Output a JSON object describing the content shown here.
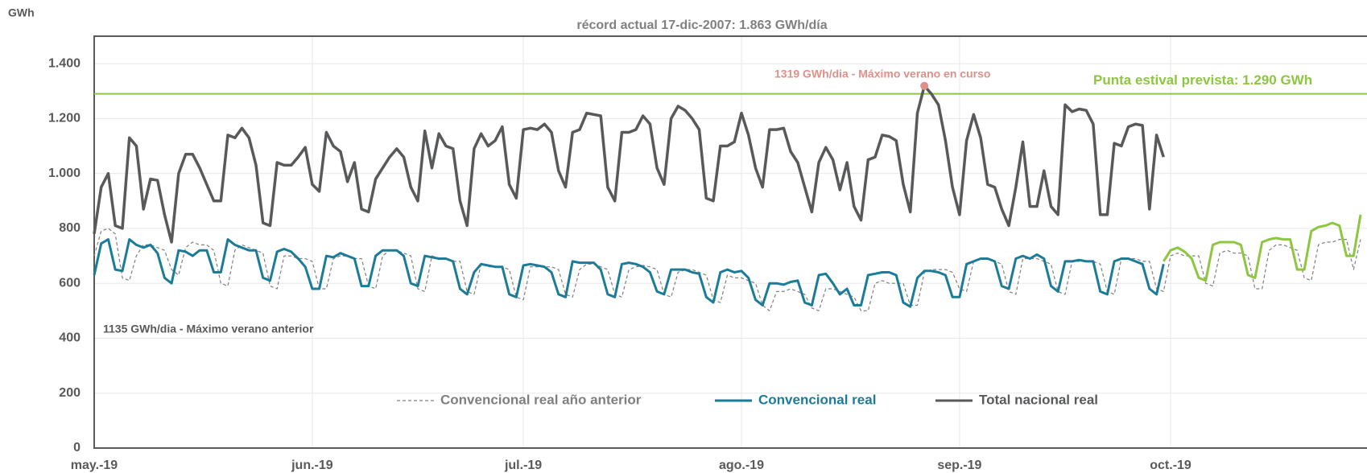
{
  "chart_data": {
    "type": "line",
    "title": "récord actual 17-dic-2007:  1.863 GWh/día",
    "y_axis_label": "GWh",
    "categories": [
      "may.-19",
      null,
      null,
      null,
      null,
      null,
      null,
      null,
      null,
      null,
      null,
      null,
      null,
      null,
      null,
      null,
      null,
      null,
      null,
      null,
      null,
      null,
      null,
      null,
      null,
      null,
      null,
      null,
      null,
      null,
      null,
      "jun.-19",
      null,
      null,
      null,
      null,
      null,
      null,
      null,
      null,
      null,
      null,
      null,
      null,
      null,
      null,
      null,
      null,
      null,
      null,
      null,
      null,
      null,
      null,
      null,
      null,
      null,
      null,
      null,
      null,
      null,
      "jul.-19",
      null,
      null,
      null,
      null,
      null,
      null,
      null,
      null,
      null,
      null,
      null,
      null,
      null,
      null,
      null,
      null,
      null,
      null,
      null,
      null,
      null,
      null,
      null,
      null,
      null,
      null,
      null,
      null,
      null,
      null,
      "ago.-19",
      null,
      null,
      null,
      null,
      null,
      null,
      null,
      null,
      null,
      null,
      null,
      null,
      null,
      null,
      null,
      null,
      null,
      null,
      null,
      null,
      null,
      null,
      null,
      null,
      null,
      null,
      null,
      null,
      null,
      null,
      "sep.-19",
      null,
      null,
      null,
      null,
      null,
      null,
      null,
      null,
      null,
      null,
      null,
      null,
      null,
      null,
      null,
      null,
      null,
      null,
      null,
      null,
      null,
      null,
      null,
      null,
      null,
      null,
      null,
      null,
      null,
      "oct.-19",
      null,
      null,
      null,
      null,
      null,
      null,
      null,
      null,
      null,
      null,
      null,
      null,
      null,
      null,
      null,
      null,
      null,
      null,
      null,
      null,
      null,
      null,
      null,
      null,
      null,
      null,
      null
    ],
    "series": [
      {
        "name": "Convencional real año anterior",
        "color": "#7f7f7f",
        "dash": true,
        "width": 1.2,
        "values": [
          700,
          790,
          800,
          780,
          620,
          610,
          700,
          740,
          740,
          730,
          720,
          650,
          630,
          730,
          750,
          740,
          740,
          720,
          600,
          590,
          720,
          740,
          730,
          720,
          710,
          590,
          580,
          700,
          700,
          690,
          690,
          680,
          580,
          580,
          690,
          700,
          700,
          690,
          690,
          590,
          580,
          700,
          720,
          720,
          710,
          700,
          580,
          570,
          700,
          690,
          690,
          680,
          680,
          570,
          560,
          670,
          660,
          660,
          660,
          650,
          550,
          540,
          660,
          660,
          660,
          660,
          650,
          560,
          550,
          650,
          670,
          670,
          660,
          650,
          560,
          550,
          650,
          660,
          665,
          660,
          650,
          560,
          550,
          640,
          650,
          650,
          640,
          630,
          540,
          530,
          630,
          620,
          620,
          610,
          600,
          520,
          500,
          570,
          570,
          580,
          570,
          560,
          510,
          500,
          580,
          580,
          570,
          560,
          550,
          500,
          500,
          600,
          610,
          600,
          600,
          600,
          520,
          520,
          640,
          650,
          650,
          650,
          640,
          580,
          570,
          680,
          690,
          690,
          680,
          670,
          570,
          560,
          690,
          690,
          690,
          680,
          670,
          570,
          560,
          680,
          680,
          680,
          680,
          670,
          570,
          560,
          690,
          690,
          690,
          680,
          680,
          580,
          570,
          700,
          710,
          700,
          700,
          700,
          600,
          590,
          710,
          720,
          710,
          710,
          700,
          580,
          580,
          720,
          740,
          740,
          730,
          720,
          620,
          610,
          740,
          750,
          750,
          760,
          760,
          650,
          760
        ]
      },
      {
        "name": "Convencional real",
        "color": "#1b7b99",
        "width": 3,
        "values": [
          630,
          745,
          760,
          650,
          645,
          760,
          740,
          730,
          740,
          710,
          620,
          600,
          720,
          715,
          700,
          720,
          720,
          640,
          640,
          760,
          740,
          730,
          720,
          720,
          620,
          610,
          715,
          725,
          715,
          690,
          660,
          580,
          580,
          700,
          695,
          710,
          700,
          690,
          590,
          590,
          700,
          720,
          720,
          720,
          700,
          600,
          590,
          700,
          695,
          690,
          690,
          680,
          580,
          560,
          640,
          670,
          665,
          660,
          660,
          560,
          550,
          665,
          670,
          665,
          660,
          640,
          560,
          550,
          680,
          675,
          675,
          675,
          650,
          560,
          550,
          670,
          675,
          670,
          660,
          640,
          570,
          560,
          650,
          650,
          650,
          640,
          635,
          550,
          530,
          640,
          650,
          640,
          645,
          620,
          540,
          520,
          600,
          600,
          595,
          605,
          610,
          530,
          520,
          630,
          635,
          600,
          560,
          580,
          520,
          520,
          630,
          635,
          640,
          640,
          630,
          530,
          515,
          620,
          645,
          645,
          640,
          630,
          550,
          550,
          670,
          680,
          690,
          690,
          680,
          590,
          580,
          690,
          700,
          690,
          705,
          690,
          590,
          570,
          680,
          680,
          685,
          680,
          680,
          570,
          560,
          680,
          690,
          690,
          680,
          670,
          580,
          560,
          670,
          null,
          null,
          null,
          null,
          null,
          null,
          null,
          null,
          null,
          null,
          null,
          null,
          null,
          null,
          null,
          null,
          null,
          null,
          null,
          null,
          null,
          null,
          null,
          null,
          null,
          null,
          null,
          null
        ]
      },
      {
        "name": "Total nacional real",
        "color": "#58595b",
        "width": 3.5,
        "values": [
          780,
          950,
          1000,
          810,
          800,
          1130,
          1100,
          870,
          980,
          975,
          850,
          750,
          1000,
          1070,
          1070,
          1020,
          960,
          900,
          900,
          1140,
          1130,
          1165,
          1130,
          1030,
          820,
          810,
          1040,
          1030,
          1030,
          1060,
          1095,
          960,
          935,
          1150,
          1100,
          1080,
          970,
          1040,
          870,
          860,
          980,
          1020,
          1060,
          1090,
          1060,
          950,
          900,
          1155,
          1020,
          1145,
          1100,
          1090,
          900,
          810,
          1090,
          1145,
          1100,
          1120,
          1170,
          960,
          910,
          1160,
          1165,
          1160,
          1180,
          1150,
          1010,
          950,
          1150,
          1160,
          1220,
          1215,
          1210,
          950,
          900,
          1150,
          1150,
          1160,
          1210,
          1180,
          1020,
          960,
          1200,
          1245,
          1230,
          1200,
          1160,
          910,
          900,
          1100,
          1100,
          1115,
          1220,
          1140,
          1020,
          950,
          1160,
          1160,
          1165,
          1080,
          1040,
          950,
          860,
          1040,
          1095,
          1050,
          940,
          1040,
          880,
          830,
          1050,
          1060,
          1140,
          1135,
          1120,
          960,
          860,
          1220,
          1319,
          1290,
          1250,
          1120,
          950,
          850,
          1120,
          1215,
          1130,
          960,
          950,
          870,
          810,
          950,
          1115,
          880,
          880,
          1010,
          880,
          850,
          1250,
          1225,
          1235,
          1230,
          1180,
          850,
          850,
          1110,
          1100,
          1170,
          1180,
          1175,
          870,
          1140,
          1060,
          null,
          null,
          null,
          null,
          null,
          null,
          null,
          null,
          null,
          null,
          null,
          null,
          null,
          null,
          null,
          null,
          null,
          null,
          null,
          null,
          null,
          null,
          null,
          null,
          null,
          null,
          null,
          null
        ]
      },
      {
        "color": "#8dc63f",
        "width": 3,
        "values": [
          null,
          null,
          null,
          null,
          null,
          null,
          null,
          null,
          null,
          null,
          null,
          null,
          null,
          null,
          null,
          null,
          null,
          null,
          null,
          null,
          null,
          null,
          null,
          null,
          null,
          null,
          null,
          null,
          null,
          null,
          null,
          null,
          null,
          null,
          null,
          null,
          null,
          null,
          null,
          null,
          null,
          null,
          null,
          null,
          null,
          null,
          null,
          null,
          null,
          null,
          null,
          null,
          null,
          null,
          null,
          null,
          null,
          null,
          null,
          null,
          null,
          null,
          null,
          null,
          null,
          null,
          null,
          null,
          null,
          null,
          null,
          null,
          null,
          null,
          null,
          null,
          null,
          null,
          null,
          null,
          null,
          null,
          null,
          null,
          null,
          null,
          null,
          null,
          null,
          null,
          null,
          null,
          null,
          null,
          null,
          null,
          null,
          null,
          null,
          null,
          null,
          null,
          null,
          null,
          null,
          null,
          null,
          null,
          null,
          null,
          null,
          null,
          null,
          null,
          null,
          null,
          null,
          null,
          null,
          null,
          null,
          null,
          null,
          null,
          null,
          null,
          null,
          null,
          null,
          null,
          null,
          null,
          null,
          null,
          null,
          null,
          null,
          null,
          null,
          null,
          null,
          null,
          null,
          null,
          null,
          null,
          null,
          null,
          null,
          null,
          null,
          null,
          680,
          720,
          730,
          715,
          690,
          620,
          610,
          740,
          750,
          750,
          750,
          740,
          630,
          620,
          750,
          760,
          765,
          760,
          760,
          650,
          650,
          790,
          805,
          810,
          820,
          810,
          700,
          700,
          850
        ]
      }
    ],
    "ylim": [
      0,
      1500
    ],
    "yticks": [
      0,
      200,
      400,
      600,
      800,
      {
        "value": 1000,
        "label": "1.000"
      },
      {
        "value": 1200,
        "label": "1.200"
      },
      {
        "value": 1400,
        "label": "1.400"
      }
    ],
    "grid": true,
    "reference_line": {
      "value": 1290,
      "label": "Punta estival prevista: 1.290 GWh",
      "color": "#8dc63f"
    },
    "annotations": [
      {
        "text": "1319  GWh/dia - Máximo verano en curso",
        "color": "#e0908a"
      },
      {
        "text": "1135 GWh/dia - Máximo verano anterior",
        "color": "#595959"
      }
    ]
  }
}
